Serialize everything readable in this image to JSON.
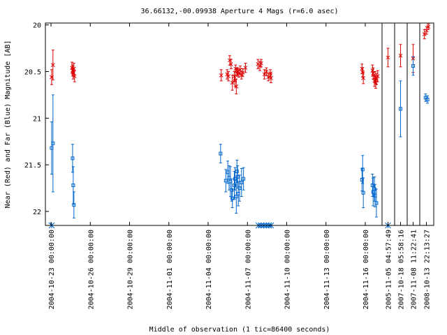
{
  "chart_data": {
    "type": "scatter",
    "title": "36.66132,-00.09938   Aperture 4 Mags (r=6.0 asec)",
    "xlabel": "Middle of observation (1 tic=86400 seconds)",
    "ylabel": "Near (Red) and Far (Blue) Magnitude [AB]",
    "ylim": [
      22.15,
      19.98
    ],
    "y_inverted": true,
    "yticks": [
      "20",
      "20.5",
      "21",
      "21.5",
      "22"
    ],
    "xticks_continuous": [
      "2004-10-23 00:00:00",
      "2004-10-26 00:00:00",
      "2004-10-29 00:00:00",
      "2004-11-01 00:00:00",
      "2004-11-04 00:00:00",
      "2004-11-07 00:00:00",
      "2004-11-10 00:00:00",
      "2004-11-13 00:00:00",
      "2004-11-16 00:00:00"
    ],
    "x_continuous_range_days": [
      0,
      25.3
    ],
    "xticks_panels": [
      "2005-11-05 04:57:49",
      "2007-10-18 05:58:16",
      "2007-11-08 11:22:41",
      "2008-10-13 22:13:27"
    ],
    "colors": {
      "near": "#dd0000",
      "far": "#0066cc",
      "axis": "#000000"
    },
    "series": [
      {
        "name": "Near",
        "marker": "x",
        "points": [
          {
            "x": 0.05,
            "y": 20.56,
            "err": 0.08
          },
          {
            "x": 0.15,
            "y": 20.43,
            "err": 0.16
          },
          {
            "x": 1.6,
            "y": 20.46,
            "err": 0.06
          },
          {
            "x": 1.65,
            "y": 20.49,
            "err": 0.06
          },
          {
            "x": 1.7,
            "y": 20.52,
            "err": 0.06
          },
          {
            "x": 1.75,
            "y": 20.47,
            "err": 0.06
          },
          {
            "x": 1.8,
            "y": 20.55,
            "err": 0.06
          },
          {
            "x": 13.0,
            "y": 20.54,
            "err": 0.06
          },
          {
            "x": 13.45,
            "y": 20.53,
            "err": 0.05
          },
          {
            "x": 13.55,
            "y": 20.55,
            "err": 0.05
          },
          {
            "x": 13.65,
            "y": 20.38,
            "err": 0.05
          },
          {
            "x": 13.75,
            "y": 20.42,
            "err": 0.05
          },
          {
            "x": 13.85,
            "y": 20.62,
            "err": 0.08
          },
          {
            "x": 14.0,
            "y": 20.55,
            "err": 0.05
          },
          {
            "x": 14.05,
            "y": 20.6,
            "err": 0.06
          },
          {
            "x": 14.1,
            "y": 20.47,
            "err": 0.04
          },
          {
            "x": 14.15,
            "y": 20.66,
            "err": 0.08
          },
          {
            "x": 14.2,
            "y": 20.51,
            "err": 0.04
          },
          {
            "x": 14.25,
            "y": 20.5,
            "err": 0.04
          },
          {
            "x": 14.35,
            "y": 20.52,
            "err": 0.04
          },
          {
            "x": 14.45,
            "y": 20.48,
            "err": 0.04
          },
          {
            "x": 14.55,
            "y": 20.54,
            "err": 0.04
          },
          {
            "x": 14.65,
            "y": 20.51,
            "err": 0.04
          },
          {
            "x": 14.85,
            "y": 20.46,
            "err": 0.05
          },
          {
            "x": 15.8,
            "y": 20.42,
            "err": 0.05
          },
          {
            "x": 15.95,
            "y": 20.44,
            "err": 0.05
          },
          {
            "x": 16.05,
            "y": 20.41,
            "err": 0.04
          },
          {
            "x": 16.3,
            "y": 20.53,
            "err": 0.05
          },
          {
            "x": 16.45,
            "y": 20.5,
            "err": 0.04
          },
          {
            "x": 16.6,
            "y": 20.56,
            "err": 0.04
          },
          {
            "x": 16.75,
            "y": 20.52,
            "err": 0.04
          },
          {
            "x": 16.8,
            "y": 20.57,
            "err": 0.05
          },
          {
            "x": 23.75,
            "y": 20.47,
            "err": 0.05
          },
          {
            "x": 23.8,
            "y": 20.51,
            "err": 0.05
          },
          {
            "x": 23.85,
            "y": 20.57,
            "err": 0.06
          },
          {
            "x": 24.55,
            "y": 20.49,
            "err": 0.06
          },
          {
            "x": 24.6,
            "y": 20.52,
            "err": 0.06
          },
          {
            "x": 24.7,
            "y": 20.6,
            "err": 0.06
          },
          {
            "x": 24.75,
            "y": 20.56,
            "err": 0.06
          },
          {
            "x": 24.8,
            "y": 20.62,
            "err": 0.06
          },
          {
            "x": 24.85,
            "y": 20.58,
            "err": 0.06
          },
          {
            "x": 24.95,
            "y": 20.55,
            "err": 0.06
          }
        ],
        "panel_points": [
          {
            "panel": 0,
            "y": 20.35,
            "err": 0.1
          },
          {
            "panel": 1,
            "y": 20.33,
            "err": 0.12
          },
          {
            "panel": 2,
            "y": 20.36,
            "err": 0.15
          },
          {
            "panel": 3,
            "y": 20.1,
            "err": 0.05,
            "dx": -0.35
          },
          {
            "panel": 3,
            "y": 20.06,
            "err": 0.04,
            "dx": 0.05
          },
          {
            "panel": 3,
            "y": 20.02,
            "err": 0.03,
            "dx": 0.35
          }
        ]
      },
      {
        "name": "Far",
        "marker": "square",
        "points": [
          {
            "x": 0.05,
            "y": 21.32,
            "err": 0.28
          },
          {
            "x": 0.15,
            "y": 21.27,
            "err": 0.52
          },
          {
            "x": 1.65,
            "y": 21.43,
            "err": 0.15
          },
          {
            "x": 1.7,
            "y": 21.72,
            "err": 0.2
          },
          {
            "x": 1.75,
            "y": 21.93,
            "err": 0.14
          },
          {
            "x": 12.95,
            "y": 21.38,
            "err": 0.1
          },
          {
            "x": 13.35,
            "y": 21.67,
            "err": 0.12
          },
          {
            "x": 13.5,
            "y": 21.58,
            "err": 0.12
          },
          {
            "x": 13.6,
            "y": 21.64,
            "err": 0.13
          },
          {
            "x": 13.7,
            "y": 21.68,
            "err": 0.16
          },
          {
            "x": 13.8,
            "y": 21.77,
            "err": 0.12
          },
          {
            "x": 13.85,
            "y": 21.86,
            "err": 0.1
          },
          {
            "x": 14.0,
            "y": 21.72,
            "err": 0.15
          },
          {
            "x": 14.05,
            "y": 21.65,
            "err": 0.12
          },
          {
            "x": 14.15,
            "y": 21.84,
            "err": 0.18
          },
          {
            "x": 14.2,
            "y": 21.57,
            "err": 0.12
          },
          {
            "x": 14.25,
            "y": 21.63,
            "err": 0.12
          },
          {
            "x": 14.3,
            "y": 21.81,
            "err": 0.13
          },
          {
            "x": 14.4,
            "y": 21.75,
            "err": 0.14
          },
          {
            "x": 14.55,
            "y": 21.69,
            "err": 0.15
          },
          {
            "x": 14.7,
            "y": 21.65,
            "err": 0.12
          },
          {
            "x": 23.75,
            "y": 21.66,
            "err": 0.12
          },
          {
            "x": 23.8,
            "y": 21.55,
            "err": 0.15
          },
          {
            "x": 23.85,
            "y": 21.8,
            "err": 0.16
          },
          {
            "x": 24.55,
            "y": 21.72,
            "err": 0.12
          },
          {
            "x": 24.6,
            "y": 21.79,
            "err": 0.15
          },
          {
            "x": 24.7,
            "y": 21.76,
            "err": 0.13
          },
          {
            "x": 24.75,
            "y": 21.83,
            "err": 0.12
          },
          {
            "x": 24.85,
            "y": 21.91,
            "err": 0.15
          }
        ],
        "panel_points": [
          {
            "panel": 1,
            "y": 20.9,
            "err": 0.3
          },
          {
            "panel": 2,
            "y": 20.44,
            "err": 0.1
          },
          {
            "panel": 3,
            "y": 20.78,
            "err": 0.04,
            "dx": -0.15
          },
          {
            "panel": 3,
            "y": 20.8,
            "err": 0.04,
            "dx": 0.2
          }
        ]
      }
    ],
    "upper_limits": {
      "marker": "asterisk",
      "x": [
        0.05,
        15.85,
        16.05,
        16.25,
        16.45,
        16.65,
        16.8
      ],
      "panels": [
        0
      ]
    }
  }
}
